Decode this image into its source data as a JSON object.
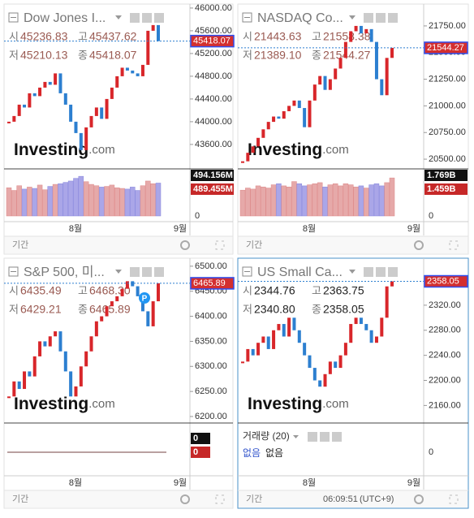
{
  "panels": [
    {
      "title": "Dow Jones I...",
      "ohlc": [
        {
          "label": "시",
          "value": "45236.83"
        },
        {
          "label": "고",
          "value": "45437.62"
        },
        {
          "label": "저",
          "value": "45210.13"
        },
        {
          "label": "종",
          "value": "45418.07"
        }
      ],
      "value_color": "#9a5a52",
      "ylim": [
        43170,
        46070
      ],
      "yticks": [
        {
          "value": 43600,
          "label": "43600.00"
        },
        {
          "value": 44000,
          "label": "44000.00"
        },
        {
          "value": 44400,
          "label": "44400.00"
        },
        {
          "value": 44800,
          "label": "44800.00"
        },
        {
          "value": 45200,
          "label": "45200.00"
        },
        {
          "value": 45600,
          "label": "45600.00"
        },
        {
          "value": 46000,
          "label": "46000.00"
        }
      ],
      "closes": [
        44000,
        44100,
        44300,
        44250,
        44500,
        44450,
        44600,
        44700,
        44650,
        44850,
        44500,
        44300,
        44000,
        43800,
        43500,
        43900,
        44100,
        44250,
        44050,
        44400,
        44600,
        44800,
        44950,
        44900,
        44850,
        44800,
        45000,
        45600,
        45700,
        45418.07
      ],
      "volume": {
        "values": [
          420,
          380,
          450,
          400,
          430,
          410,
          460,
          390,
          440,
          470,
          480,
          500,
          520,
          560,
          590,
          510,
          470,
          450,
          430,
          440,
          460,
          420,
          410,
          400,
          430,
          380,
          450,
          520,
          480,
          489.455
        ],
        "ylim": [
          0,
          640
        ],
        "yticks": [
          0
        ],
        "badges": [
          "494.156M",
          "489.455M"
        ]
      },
      "x_labels": [
        "8월",
        "9월"
      ],
      "footer": "기간"
    },
    {
      "title": "NASDAQ Co...",
      "ohlc": [
        {
          "label": "시",
          "value": "21443.63"
        },
        {
          "label": "고",
          "value": "21558.38"
        },
        {
          "label": "저",
          "value": "21389.10"
        },
        {
          "label": "종",
          "value": "21544.27"
        }
      ],
      "value_color": "#9a5a52",
      "ylim": [
        20409,
        21955
      ],
      "yticks": [
        {
          "value": 20500,
          "label": "20500.00"
        },
        {
          "value": 20750,
          "label": "20750.00"
        },
        {
          "value": 21000,
          "label": "21000.00"
        },
        {
          "value": 21250,
          "label": "21250.00"
        },
        {
          "value": 21500,
          "label": "21500.00"
        },
        {
          "value": 21750,
          "label": "21750.00"
        }
      ],
      "closes": [
        20480,
        20560,
        20620,
        20700,
        20780,
        20850,
        20900,
        20880,
        20950,
        21000,
        21050,
        20980,
        20800,
        21050,
        21200,
        21280,
        21150,
        21250,
        21350,
        21450,
        21600,
        21700,
        21750,
        21680,
        21720,
        21600,
        21250,
        21100,
        21450,
        21544.27
      ],
      "volume": {
        "values": [
          1.2,
          1.3,
          1.25,
          1.4,
          1.35,
          1.3,
          1.45,
          1.5,
          1.4,
          1.35,
          1.6,
          1.5,
          1.4,
          1.45,
          1.5,
          1.55,
          1.35,
          1.45,
          1.5,
          1.4,
          1.5,
          1.45,
          1.35,
          1.4,
          1.3,
          1.45,
          1.5,
          1.4,
          1.55,
          1.769
        ],
        "ylim": [
          0,
          2
        ],
        "yticks": [
          0
        ],
        "badges": [
          "1.769B",
          "1.459B"
        ]
      },
      "x_labels": [
        "8월",
        "9월"
      ],
      "footer": "기간"
    },
    {
      "title": "S&P 500, 미...",
      "ohlc": [
        {
          "label": "시",
          "value": "6435.49"
        },
        {
          "label": "고",
          "value": "6468.30"
        },
        {
          "label": "저",
          "value": "6429.21"
        },
        {
          "label": "종",
          "value": "6465.89"
        }
      ],
      "value_color": "#9a5a52",
      "ylim": [
        6187,
        6516
      ],
      "marker": "P",
      "yticks": [
        {
          "value": 6200,
          "label": "6200.00"
        },
        {
          "value": 6250,
          "label": "6250.00"
        },
        {
          "value": 6300,
          "label": "6300.00"
        },
        {
          "value": 6350,
          "label": "6350.00"
        },
        {
          "value": 6400,
          "label": "6400.00"
        },
        {
          "value": 6450,
          "label": "6450.00"
        },
        {
          "value": 6500,
          "label": "6500.00"
        }
      ],
      "closes": [
        6240,
        6270,
        6255,
        6290,
        6280,
        6320,
        6350,
        6340,
        6360,
        6370,
        6330,
        6290,
        6240,
        6260,
        6300,
        6330,
        6360,
        6390,
        6400,
        6420,
        6430,
        6440,
        6455,
        6470,
        6460,
        6440,
        6410,
        6380,
        6430,
        6465.89
      ],
      "volume": {
        "badges": [
          "0",
          "0"
        ]
      },
      "x_labels": [
        "8월",
        "9월"
      ],
      "footer": "기간"
    },
    {
      "title": "US Small Ca...",
      "ohlc": [
        {
          "label": "시",
          "value": "2344.76"
        },
        {
          "label": "고",
          "value": "2363.75"
        },
        {
          "label": "저",
          "value": "2340.80"
        },
        {
          "label": "종",
          "value": "2358.05"
        }
      ],
      "value_color": "#222222",
      "ylim": [
        2132,
        2395
      ],
      "yticks": [
        {
          "value": 2160,
          "label": "2160.00"
        },
        {
          "value": 2200,
          "label": "2200.00"
        },
        {
          "value": 2240,
          "label": "2240.00"
        },
        {
          "value": 2280,
          "label": "2280.00"
        },
        {
          "value": 2320,
          "label": "2320.00"
        }
      ],
      "closes": [
        2230,
        2250,
        2240,
        2260,
        2270,
        2250,
        2280,
        2290,
        2270,
        2300,
        2280,
        2260,
        2240,
        2220,
        2200,
        2190,
        2210,
        2230,
        2220,
        2240,
        2260,
        2290,
        2300,
        2290,
        2280,
        2260,
        2270,
        2300,
        2350,
        2358.05
      ],
      "volume_study": {
        "title": "거래량 (20)",
        "values": [
          "없음",
          "없음"
        ],
        "yticks": [
          0
        ]
      },
      "x_labels": [
        "8월",
        "9월"
      ],
      "footer": "기간",
      "time": "06:09:51",
      "timezone": "(UTC+9)"
    }
  ],
  "watermark": "Investing",
  "watermark_suffix": ".com",
  "up_color": "#d8262a",
  "down_color": "#2c7fd0"
}
